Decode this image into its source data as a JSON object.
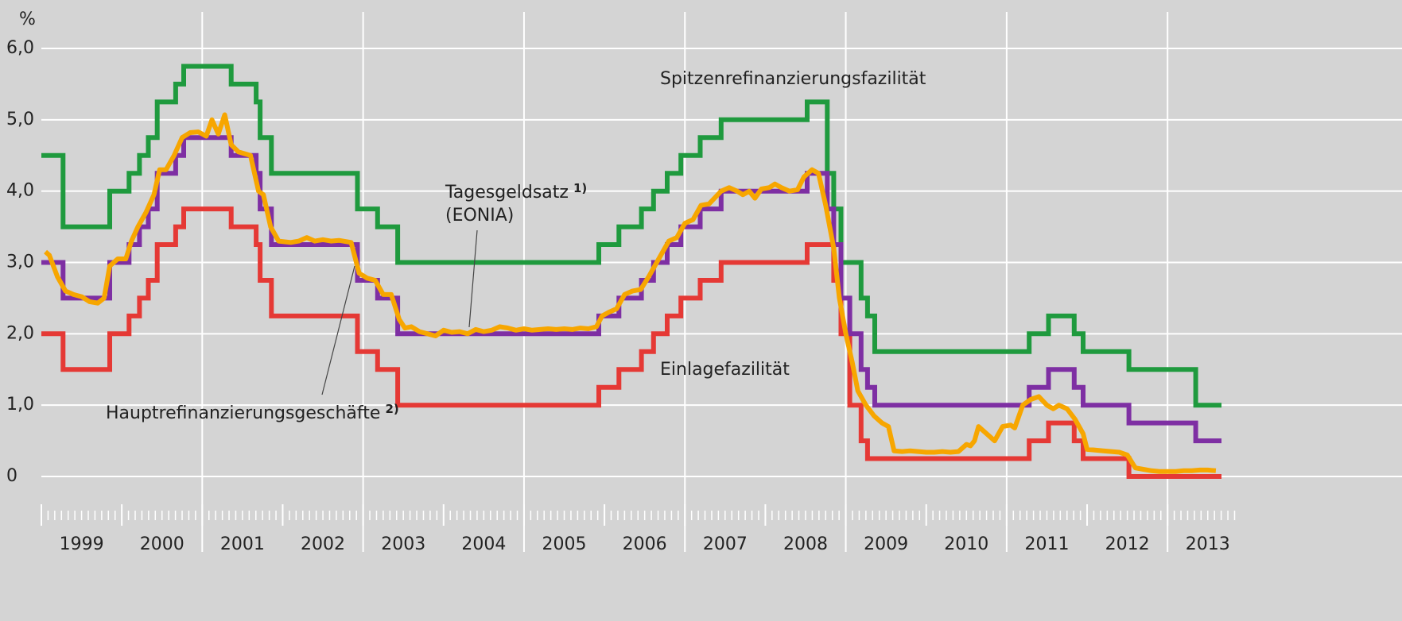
{
  "chart_data": {
    "type": "line",
    "y_label": "%",
    "xlim": [
      1999,
      2013.7
    ],
    "ylim": [
      0,
      6.0
    ],
    "yticks": [
      0,
      {
        "value": 1,
        "label": "1,0"
      },
      {
        "value": 2,
        "label": "2,0"
      },
      {
        "value": 3,
        "label": "3,0"
      },
      {
        "value": 4,
        "label": "4,0"
      },
      {
        "value": 5,
        "label": "5,0"
      },
      {
        "value": 6,
        "label": "6,0"
      }
    ],
    "xticks": [
      {
        "value": 1999,
        "label": "1999"
      },
      {
        "value": 2000,
        "label": "2000"
      },
      {
        "value": 2001,
        "label": "2001"
      },
      {
        "value": 2002,
        "label": "2002"
      },
      {
        "value": 2003,
        "label": "2003"
      },
      {
        "value": 2004,
        "label": "2004"
      },
      {
        "value": 2005,
        "label": "2005"
      },
      {
        "value": 2006,
        "label": "2006"
      },
      {
        "value": 2007,
        "label": "2007"
      },
      {
        "value": 2008,
        "label": "2008"
      },
      {
        "value": 2009,
        "label": "2009"
      },
      {
        "value": 2010,
        "label": "2010"
      },
      {
        "value": 2011,
        "label": "2011"
      },
      {
        "value": 2012,
        "label": "2012"
      },
      {
        "value": 2013,
        "label": "2013"
      }
    ],
    "xgrid": [
      2001,
      2003,
      2005,
      2007,
      2009,
      2011,
      2013
    ],
    "grid": true,
    "series": [
      {
        "name": "Spitzenrefinanzierungsfazilität",
        "color": "#1f9a3e",
        "step": true,
        "x": [
          1999.0,
          1999.27,
          1999.85,
          2000.09,
          2000.22,
          2000.33,
          2000.44,
          2000.67,
          2000.77,
          2001.36,
          2001.67,
          2001.72,
          2001.86,
          2002.93,
          2003.18,
          2003.43,
          2005.93,
          2006.18,
          2006.46,
          2006.61,
          2006.78,
          2006.95,
          2007.19,
          2007.45,
          2008.52,
          2008.77,
          2008.85,
          2008.94,
          2009.19,
          2009.27,
          2009.36,
          2011.28,
          2011.52,
          2011.84,
          2011.95,
          2012.52,
          2013.35,
          2013.67
        ],
        "values": [
          4.5,
          3.5,
          4.0,
          4.25,
          4.5,
          4.75,
          5.25,
          5.5,
          5.75,
          5.5,
          5.25,
          4.75,
          4.25,
          3.75,
          3.5,
          3.0,
          3.25,
          3.5,
          3.75,
          4.0,
          4.25,
          4.5,
          4.75,
          5.0,
          5.25,
          4.25,
          3.75,
          3.0,
          2.5,
          2.25,
          1.75,
          2.0,
          2.25,
          2.0,
          1.75,
          1.5,
          1.0,
          1.0
        ]
      },
      {
        "name": "Einlagefazilität",
        "color": "#e53935",
        "step": true,
        "x": [
          1999.0,
          1999.27,
          1999.85,
          2000.09,
          2000.22,
          2000.33,
          2000.44,
          2000.67,
          2000.77,
          2001.36,
          2001.67,
          2001.72,
          2001.86,
          2002.93,
          2003.18,
          2003.43,
          2005.93,
          2006.18,
          2006.46,
          2006.61,
          2006.78,
          2006.95,
          2007.19,
          2007.45,
          2008.52,
          2008.85,
          2008.94,
          2009.05,
          2009.19,
          2009.27,
          2011.28,
          2011.52,
          2011.84,
          2011.95,
          2012.52,
          2013.67
        ],
        "values": [
          2.0,
          1.5,
          2.0,
          2.25,
          2.5,
          2.75,
          3.25,
          3.5,
          3.75,
          3.5,
          3.25,
          2.75,
          2.25,
          1.75,
          1.5,
          1.0,
          1.25,
          1.5,
          1.75,
          2.0,
          2.25,
          2.5,
          2.75,
          3.0,
          3.25,
          2.75,
          2.0,
          1.0,
          0.5,
          0.25,
          0.5,
          0.75,
          0.5,
          0.25,
          0.0,
          0.0
        ]
      },
      {
        "name": "Hauptrefinanzierungsgeschäfte",
        "footnote": "2)",
        "color": "#7e2fa3",
        "step": true,
        "x": [
          1999.0,
          1999.27,
          1999.85,
          2000.09,
          2000.22,
          2000.33,
          2000.44,
          2000.67,
          2000.77,
          2001.36,
          2001.67,
          2001.72,
          2001.86,
          2002.93,
          2003.18,
          2003.43,
          2005.93,
          2006.18,
          2006.46,
          2006.61,
          2006.78,
          2006.95,
          2007.19,
          2007.45,
          2008.52,
          2008.77,
          2008.85,
          2008.94,
          2009.05,
          2009.19,
          2009.27,
          2009.36,
          2011.28,
          2011.52,
          2011.84,
          2011.95,
          2012.52,
          2013.35,
          2013.67
        ],
        "values": [
          3.0,
          2.5,
          3.0,
          3.25,
          3.5,
          3.75,
          4.25,
          4.5,
          4.75,
          4.5,
          4.25,
          3.75,
          3.25,
          2.75,
          2.5,
          2.0,
          2.25,
          2.5,
          2.75,
          3.0,
          3.25,
          3.5,
          3.75,
          4.0,
          4.25,
          3.75,
          3.25,
          2.5,
          2.0,
          1.5,
          1.25,
          1.0,
          1.25,
          1.5,
          1.25,
          1.0,
          0.75,
          0.5,
          0.5
        ]
      },
      {
        "name": "Tagesgeldsatz",
        "footnote": "1)",
        "subname": "(EONIA)",
        "color": "#f7a600",
        "step": false,
        "x": [
          1999.05,
          1999.1,
          1999.2,
          1999.3,
          1999.4,
          1999.5,
          1999.6,
          1999.7,
          1999.78,
          1999.85,
          1999.95,
          2000.05,
          2000.12,
          2000.2,
          2000.3,
          2000.4,
          2000.47,
          2000.55,
          2000.65,
          2000.75,
          2000.85,
          2000.95,
          2001.05,
          2001.12,
          2001.2,
          2001.28,
          2001.36,
          2001.45,
          2001.6,
          2001.7,
          2001.76,
          2001.85,
          2001.95,
          2002.1,
          2002.2,
          2002.3,
          2002.4,
          2002.5,
          2002.6,
          2002.7,
          2002.85,
          2002.95,
          2003.05,
          2003.15,
          2003.25,
          2003.35,
          2003.45,
          2003.52,
          2003.6,
          2003.7,
          2003.8,
          2003.9,
          2004.0,
          2004.1,
          2004.2,
          2004.3,
          2004.4,
          2004.5,
          2004.6,
          2004.7,
          2004.8,
          2004.9,
          2005.0,
          2005.1,
          2005.2,
          2005.3,
          2005.4,
          2005.5,
          2005.6,
          2005.7,
          2005.8,
          2005.9,
          2005.97,
          2006.05,
          2006.15,
          2006.25,
          2006.35,
          2006.45,
          2006.55,
          2006.65,
          2006.8,
          2006.9,
          2007.0,
          2007.1,
          2007.2,
          2007.3,
          2007.45,
          2007.55,
          2007.65,
          2007.72,
          2007.8,
          2007.87,
          2007.95,
          2008.05,
          2008.12,
          2008.2,
          2008.3,
          2008.4,
          2008.48,
          2008.58,
          2008.66,
          2008.75,
          2008.85,
          2008.92,
          2009.0,
          2009.08,
          2009.15,
          2009.25,
          2009.35,
          2009.45,
          2009.53,
          2009.6,
          2009.7,
          2009.8,
          2009.9,
          2010.0,
          2010.1,
          2010.2,
          2010.3,
          2010.4,
          2010.5,
          2010.55,
          2010.6,
          2010.65,
          2010.75,
          2010.85,
          2010.95,
          2011.05,
          2011.1,
          2011.2,
          2011.3,
          2011.4,
          2011.5,
          2011.58,
          2011.65,
          2011.75,
          2011.85,
          2011.95,
          2012.0,
          2012.1,
          2012.2,
          2012.3,
          2012.4,
          2012.5,
          2012.6,
          2012.7,
          2012.8,
          2012.9,
          2013.0,
          2013.1,
          2013.2,
          2013.3,
          2013.4,
          2013.5,
          2013.6
        ],
        "values": [
          3.15,
          3.1,
          2.8,
          2.6,
          2.55,
          2.52,
          2.45,
          2.43,
          2.5,
          2.95,
          3.05,
          3.05,
          3.3,
          3.5,
          3.7,
          3.95,
          4.3,
          4.3,
          4.5,
          4.75,
          4.82,
          4.83,
          4.77,
          5.0,
          4.8,
          5.07,
          4.65,
          4.55,
          4.5,
          4.0,
          3.95,
          3.5,
          3.3,
          3.28,
          3.3,
          3.35,
          3.3,
          3.32,
          3.3,
          3.31,
          3.28,
          2.85,
          2.78,
          2.75,
          2.55,
          2.55,
          2.2,
          2.08,
          2.1,
          2.03,
          2.0,
          1.97,
          2.05,
          2.02,
          2.03,
          2.0,
          2.06,
          2.03,
          2.05,
          2.1,
          2.08,
          2.05,
          2.07,
          2.05,
          2.06,
          2.07,
          2.06,
          2.07,
          2.06,
          2.08,
          2.07,
          2.1,
          2.25,
          2.3,
          2.35,
          2.55,
          2.6,
          2.62,
          2.8,
          3.0,
          3.3,
          3.35,
          3.55,
          3.6,
          3.8,
          3.82,
          4.0,
          4.05,
          4.0,
          3.95,
          4.0,
          3.9,
          4.03,
          4.05,
          4.1,
          4.05,
          4.0,
          4.02,
          4.2,
          4.3,
          4.25,
          3.8,
          3.2,
          2.5,
          2.0,
          1.6,
          1.2,
          1.0,
          0.85,
          0.75,
          0.7,
          0.36,
          0.35,
          0.36,
          0.35,
          0.34,
          0.34,
          0.35,
          0.34,
          0.35,
          0.45,
          0.43,
          0.5,
          0.7,
          0.6,
          0.5,
          0.7,
          0.72,
          0.68,
          1.0,
          1.08,
          1.12,
          1.0,
          0.95,
          1.0,
          0.95,
          0.8,
          0.6,
          0.38,
          0.37,
          0.36,
          0.35,
          0.34,
          0.3,
          0.12,
          0.1,
          0.08,
          0.07,
          0.07,
          0.07,
          0.08,
          0.08,
          0.09,
          0.09,
          0.08
        ]
      }
    ]
  }
}
